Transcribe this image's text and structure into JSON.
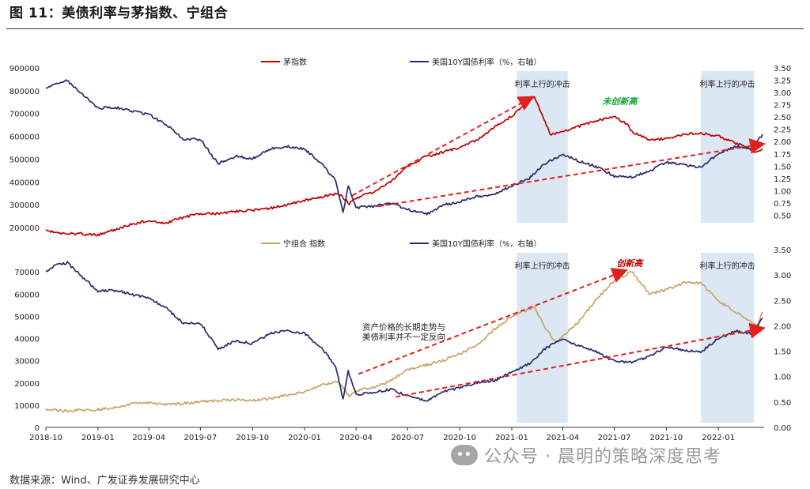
{
  "figure": {
    "title": "图 11：美债利率与茅指数、宁组合",
    "source": "数据来源：Wind、广发证券发展研究中心",
    "watermark": "公众号 · 晨明的策略深度思考",
    "watermark_icon": "wechat-icon"
  },
  "chart_data": [
    {
      "type": "line",
      "panel": "top",
      "left_axis": {
        "ylim": [
          200000,
          900000
        ],
        "ticks": [
          200000,
          300000,
          400000,
          500000,
          600000,
          700000,
          800000,
          900000
        ],
        "tick_labels": [
          "200000",
          "300000",
          "400000",
          "500000",
          "600000",
          "700000",
          "800000",
          "900000"
        ]
      },
      "right_axis": {
        "ylim": [
          0.25,
          3.5
        ],
        "ticks": [
          0.5,
          0.75,
          1.0,
          1.25,
          1.5,
          1.75,
          2.0,
          2.25,
          2.5,
          2.75,
          3.0,
          3.25,
          3.5
        ],
        "tick_labels": [
          "0.50",
          "0.75",
          "1.00",
          "1.25",
          "1.50",
          "1.75",
          "2.00",
          "2.25",
          "2.50",
          "2.75",
          "3.00",
          "3.25",
          "3.50"
        ]
      },
      "x_range": [
        "2018-10-01",
        "2022-03-20"
      ],
      "series": [
        {
          "name": "茅指数",
          "axis": "left",
          "color": "#c00000",
          "points": [
            [
              "2018-10-01",
              185000
            ],
            [
              "2018-11-01",
              175000
            ],
            [
              "2018-12-01",
              172000
            ],
            [
              "2019-01-01",
              168000
            ],
            [
              "2019-02-01",
              190000
            ],
            [
              "2019-03-01",
              215000
            ],
            [
              "2019-04-01",
              230000
            ],
            [
              "2019-05-01",
              220000
            ],
            [
              "2019-06-01",
              245000
            ],
            [
              "2019-07-01",
              260000
            ],
            [
              "2019-08-01",
              262000
            ],
            [
              "2019-09-01",
              270000
            ],
            [
              "2019-10-01",
              275000
            ],
            [
              "2019-11-01",
              285000
            ],
            [
              "2019-12-01",
              300000
            ],
            [
              "2020-01-01",
              320000
            ],
            [
              "2020-02-01",
              335000
            ],
            [
              "2020-03-01",
              350000
            ],
            [
              "2020-03-20",
              305000
            ],
            [
              "2020-04-01",
              330000
            ],
            [
              "2020-05-01",
              355000
            ],
            [
              "2020-06-01",
              400000
            ],
            [
              "2020-07-01",
              470000
            ],
            [
              "2020-08-01",
              510000
            ],
            [
              "2020-09-01",
              530000
            ],
            [
              "2020-10-01",
              550000
            ],
            [
              "2020-11-01",
              585000
            ],
            [
              "2020-12-01",
              640000
            ],
            [
              "2021-01-01",
              690000
            ],
            [
              "2021-02-10",
              770000
            ],
            [
              "2021-03-01",
              660000
            ],
            [
              "2021-03-10",
              610000
            ],
            [
              "2021-04-01",
              620000
            ],
            [
              "2021-05-01",
              645000
            ],
            [
              "2021-06-01",
              670000
            ],
            [
              "2021-07-01",
              685000
            ],
            [
              "2021-07-25",
              650000
            ],
            [
              "2021-08-01",
              620000
            ],
            [
              "2021-09-01",
              585000
            ],
            [
              "2021-10-01",
              590000
            ],
            [
              "2021-11-01",
              610000
            ],
            [
              "2021-12-01",
              615000
            ],
            [
              "2022-01-01",
              600000
            ],
            [
              "2022-02-01",
              570000
            ],
            [
              "2022-03-10",
              530000
            ],
            [
              "2022-03-20",
              545000
            ]
          ]
        },
        {
          "name": "美国10Y国债利率（%，右轴）",
          "axis": "right",
          "color": "#2a2a6a",
          "points": [
            [
              "2018-10-01",
              3.06
            ],
            [
              "2018-10-20",
              3.2
            ],
            [
              "2018-11-08",
              3.24
            ],
            [
              "2018-12-01",
              3.0
            ],
            [
              "2019-01-01",
              2.68
            ],
            [
              "2019-02-01",
              2.7
            ],
            [
              "2019-03-01",
              2.62
            ],
            [
              "2019-04-01",
              2.55
            ],
            [
              "2019-05-01",
              2.35
            ],
            [
              "2019-06-01",
              2.05
            ],
            [
              "2019-07-01",
              2.05
            ],
            [
              "2019-08-01",
              1.55
            ],
            [
              "2019-09-01",
              1.7
            ],
            [
              "2019-10-01",
              1.65
            ],
            [
              "2019-11-01",
              1.85
            ],
            [
              "2019-12-01",
              1.9
            ],
            [
              "2020-01-01",
              1.85
            ],
            [
              "2020-02-01",
              1.55
            ],
            [
              "2020-02-25",
              1.2
            ],
            [
              "2020-03-09",
              0.54
            ],
            [
              "2020-03-18",
              1.1
            ],
            [
              "2020-04-01",
              0.65
            ],
            [
              "2020-05-01",
              0.68
            ],
            [
              "2020-06-01",
              0.75
            ],
            [
              "2020-07-01",
              0.62
            ],
            [
              "2020-08-04",
              0.52
            ],
            [
              "2020-09-01",
              0.7
            ],
            [
              "2020-10-01",
              0.78
            ],
            [
              "2020-11-01",
              0.88
            ],
            [
              "2020-12-01",
              0.92
            ],
            [
              "2021-01-01",
              1.1
            ],
            [
              "2021-02-01",
              1.25
            ],
            [
              "2021-03-01",
              1.55
            ],
            [
              "2021-03-31",
              1.74
            ],
            [
              "2021-05-01",
              1.6
            ],
            [
              "2021-06-01",
              1.48
            ],
            [
              "2021-07-01",
              1.3
            ],
            [
              "2021-08-01",
              1.28
            ],
            [
              "2021-09-01",
              1.4
            ],
            [
              "2021-10-01",
              1.58
            ],
            [
              "2021-11-01",
              1.52
            ],
            [
              "2021-12-01",
              1.48
            ],
            [
              "2022-01-01",
              1.75
            ],
            [
              "2022-02-01",
              1.9
            ],
            [
              "2022-03-01",
              1.85
            ],
            [
              "2022-03-20",
              2.15
            ]
          ]
        }
      ],
      "shaded_periods": [
        {
          "start": "2021-01-10",
          "end": "2021-04-10",
          "label": "利率上行的冲击"
        },
        {
          "start": "2021-12-01",
          "end": "2022-03-05",
          "label": "利率上行的冲击"
        }
      ],
      "annotations": [
        {
          "text": "未创新高",
          "color": "#13a538"
        }
      ]
    },
    {
      "type": "line",
      "panel": "bottom",
      "left_axis": {
        "ylim": [
          0,
          80000
        ],
        "ticks": [
          0,
          10000,
          20000,
          30000,
          40000,
          50000,
          60000,
          70000
        ],
        "tick_labels": [
          "0",
          "10000",
          "20000",
          "30000",
          "40000",
          "50000",
          "60000",
          "70000"
        ]
      },
      "right_axis": {
        "ylim": [
          0.0,
          3.5
        ],
        "ticks": [
          0.0,
          0.5,
          1.0,
          1.5,
          2.0,
          2.5,
          3.0,
          3.5
        ],
        "tick_labels": [
          "0.00",
          "0.50",
          "1.00",
          "1.50",
          "2.00",
          "2.50",
          "3.00",
          "3.50"
        ]
      },
      "x_range": [
        "2018-10-01",
        "2022-03-20"
      ],
      "x_ticks": [
        "2018-10",
        "2019-01",
        "2019-04",
        "2019-07",
        "2019-10",
        "2020-01",
        "2020-04",
        "2020-07",
        "2020-10",
        "2021-01",
        "2021-04",
        "2021-07",
        "2021-10",
        "2022-01"
      ],
      "series": [
        {
          "name": "宁组合 指数",
          "axis": "left",
          "color": "#c8a46a",
          "points": [
            [
              "2018-10-01",
              8000
            ],
            [
              "2018-11-01",
              7500
            ],
            [
              "2018-12-01",
              7800
            ],
            [
              "2019-01-01",
              8000
            ],
            [
              "2019-02-01",
              9000
            ],
            [
              "2019-03-01",
              10500
            ],
            [
              "2019-04-01",
              11000
            ],
            [
              "2019-05-01",
              10200
            ],
            [
              "2019-06-01",
              10800
            ],
            [
              "2019-07-01",
              11500
            ],
            [
              "2019-08-01",
              12000
            ],
            [
              "2019-09-01",
              12500
            ],
            [
              "2019-10-01",
              12200
            ],
            [
              "2019-11-01",
              13000
            ],
            [
              "2019-12-01",
              14500
            ],
            [
              "2020-01-01",
              16000
            ],
            [
              "2020-02-01",
              19000
            ],
            [
              "2020-03-01",
              21000
            ],
            [
              "2020-03-20",
              14000
            ],
            [
              "2020-04-01",
              16500
            ],
            [
              "2020-05-01",
              18000
            ],
            [
              "2020-06-01",
              21000
            ],
            [
              "2020-07-01",
              26000
            ],
            [
              "2020-08-01",
              28000
            ],
            [
              "2020-09-01",
              30000
            ],
            [
              "2020-10-01",
              33000
            ],
            [
              "2020-11-01",
              37000
            ],
            [
              "2020-12-01",
              44000
            ],
            [
              "2021-01-01",
              50000
            ],
            [
              "2021-02-10",
              54000
            ],
            [
              "2021-03-01",
              45000
            ],
            [
              "2021-03-20",
              38000
            ],
            [
              "2021-04-01",
              41000
            ],
            [
              "2021-05-01",
              48000
            ],
            [
              "2021-06-01",
              58000
            ],
            [
              "2021-07-01",
              66000
            ],
            [
              "2021-08-01",
              70000
            ],
            [
              "2021-08-20",
              64000
            ],
            [
              "2021-09-01",
              60000
            ],
            [
              "2021-10-01",
              62000
            ],
            [
              "2021-11-01",
              65000
            ],
            [
              "2021-12-01",
              65000
            ],
            [
              "2022-01-01",
              57000
            ],
            [
              "2022-02-01",
              52000
            ],
            [
              "2022-03-10",
              46000
            ],
            [
              "2022-03-20",
              52000
            ]
          ]
        },
        {
          "name": "美国10Y国债利率（%，右轴）",
          "axis": "right",
          "color": "#2a2a6a",
          "points": [
            [
              "2018-10-01",
              3.06
            ],
            [
              "2018-10-20",
              3.2
            ],
            [
              "2018-11-08",
              3.24
            ],
            [
              "2018-12-01",
              3.0
            ],
            [
              "2019-01-01",
              2.68
            ],
            [
              "2019-02-01",
              2.7
            ],
            [
              "2019-03-01",
              2.62
            ],
            [
              "2019-04-01",
              2.55
            ],
            [
              "2019-05-01",
              2.35
            ],
            [
              "2019-06-01",
              2.05
            ],
            [
              "2019-07-01",
              2.05
            ],
            [
              "2019-08-01",
              1.55
            ],
            [
              "2019-09-01",
              1.7
            ],
            [
              "2019-10-01",
              1.65
            ],
            [
              "2019-11-01",
              1.85
            ],
            [
              "2019-12-01",
              1.9
            ],
            [
              "2020-01-01",
              1.85
            ],
            [
              "2020-02-01",
              1.55
            ],
            [
              "2020-02-25",
              1.2
            ],
            [
              "2020-03-09",
              0.54
            ],
            [
              "2020-03-18",
              1.1
            ],
            [
              "2020-04-01",
              0.65
            ],
            [
              "2020-05-01",
              0.68
            ],
            [
              "2020-06-01",
              0.75
            ],
            [
              "2020-07-01",
              0.62
            ],
            [
              "2020-08-04",
              0.52
            ],
            [
              "2020-09-01",
              0.7
            ],
            [
              "2020-10-01",
              0.78
            ],
            [
              "2020-11-01",
              0.88
            ],
            [
              "2020-12-01",
              0.92
            ],
            [
              "2021-01-01",
              1.1
            ],
            [
              "2021-02-01",
              1.25
            ],
            [
              "2021-03-01",
              1.55
            ],
            [
              "2021-03-31",
              1.74
            ],
            [
              "2021-05-01",
              1.6
            ],
            [
              "2021-06-01",
              1.48
            ],
            [
              "2021-07-01",
              1.3
            ],
            [
              "2021-08-01",
              1.28
            ],
            [
              "2021-09-01",
              1.4
            ],
            [
              "2021-10-01",
              1.58
            ],
            [
              "2021-11-01",
              1.52
            ],
            [
              "2021-12-01",
              1.48
            ],
            [
              "2022-01-01",
              1.75
            ],
            [
              "2022-02-01",
              1.9
            ],
            [
              "2022-03-01",
              1.85
            ],
            [
              "2022-03-20",
              2.15
            ]
          ]
        }
      ],
      "shaded_periods": [
        {
          "start": "2021-01-10",
          "end": "2021-04-10",
          "label": "利率上行的冲击"
        },
        {
          "start": "2021-12-01",
          "end": "2022-03-05",
          "label": "利率上行的冲击"
        }
      ],
      "annotations": [
        {
          "text": "创新高",
          "color": "#c00000"
        },
        {
          "text": "资产价格的长期走势与",
          "color": "#222222"
        },
        {
          "text": "美债利率并不一定反向",
          "color": "#222222"
        }
      ]
    }
  ]
}
